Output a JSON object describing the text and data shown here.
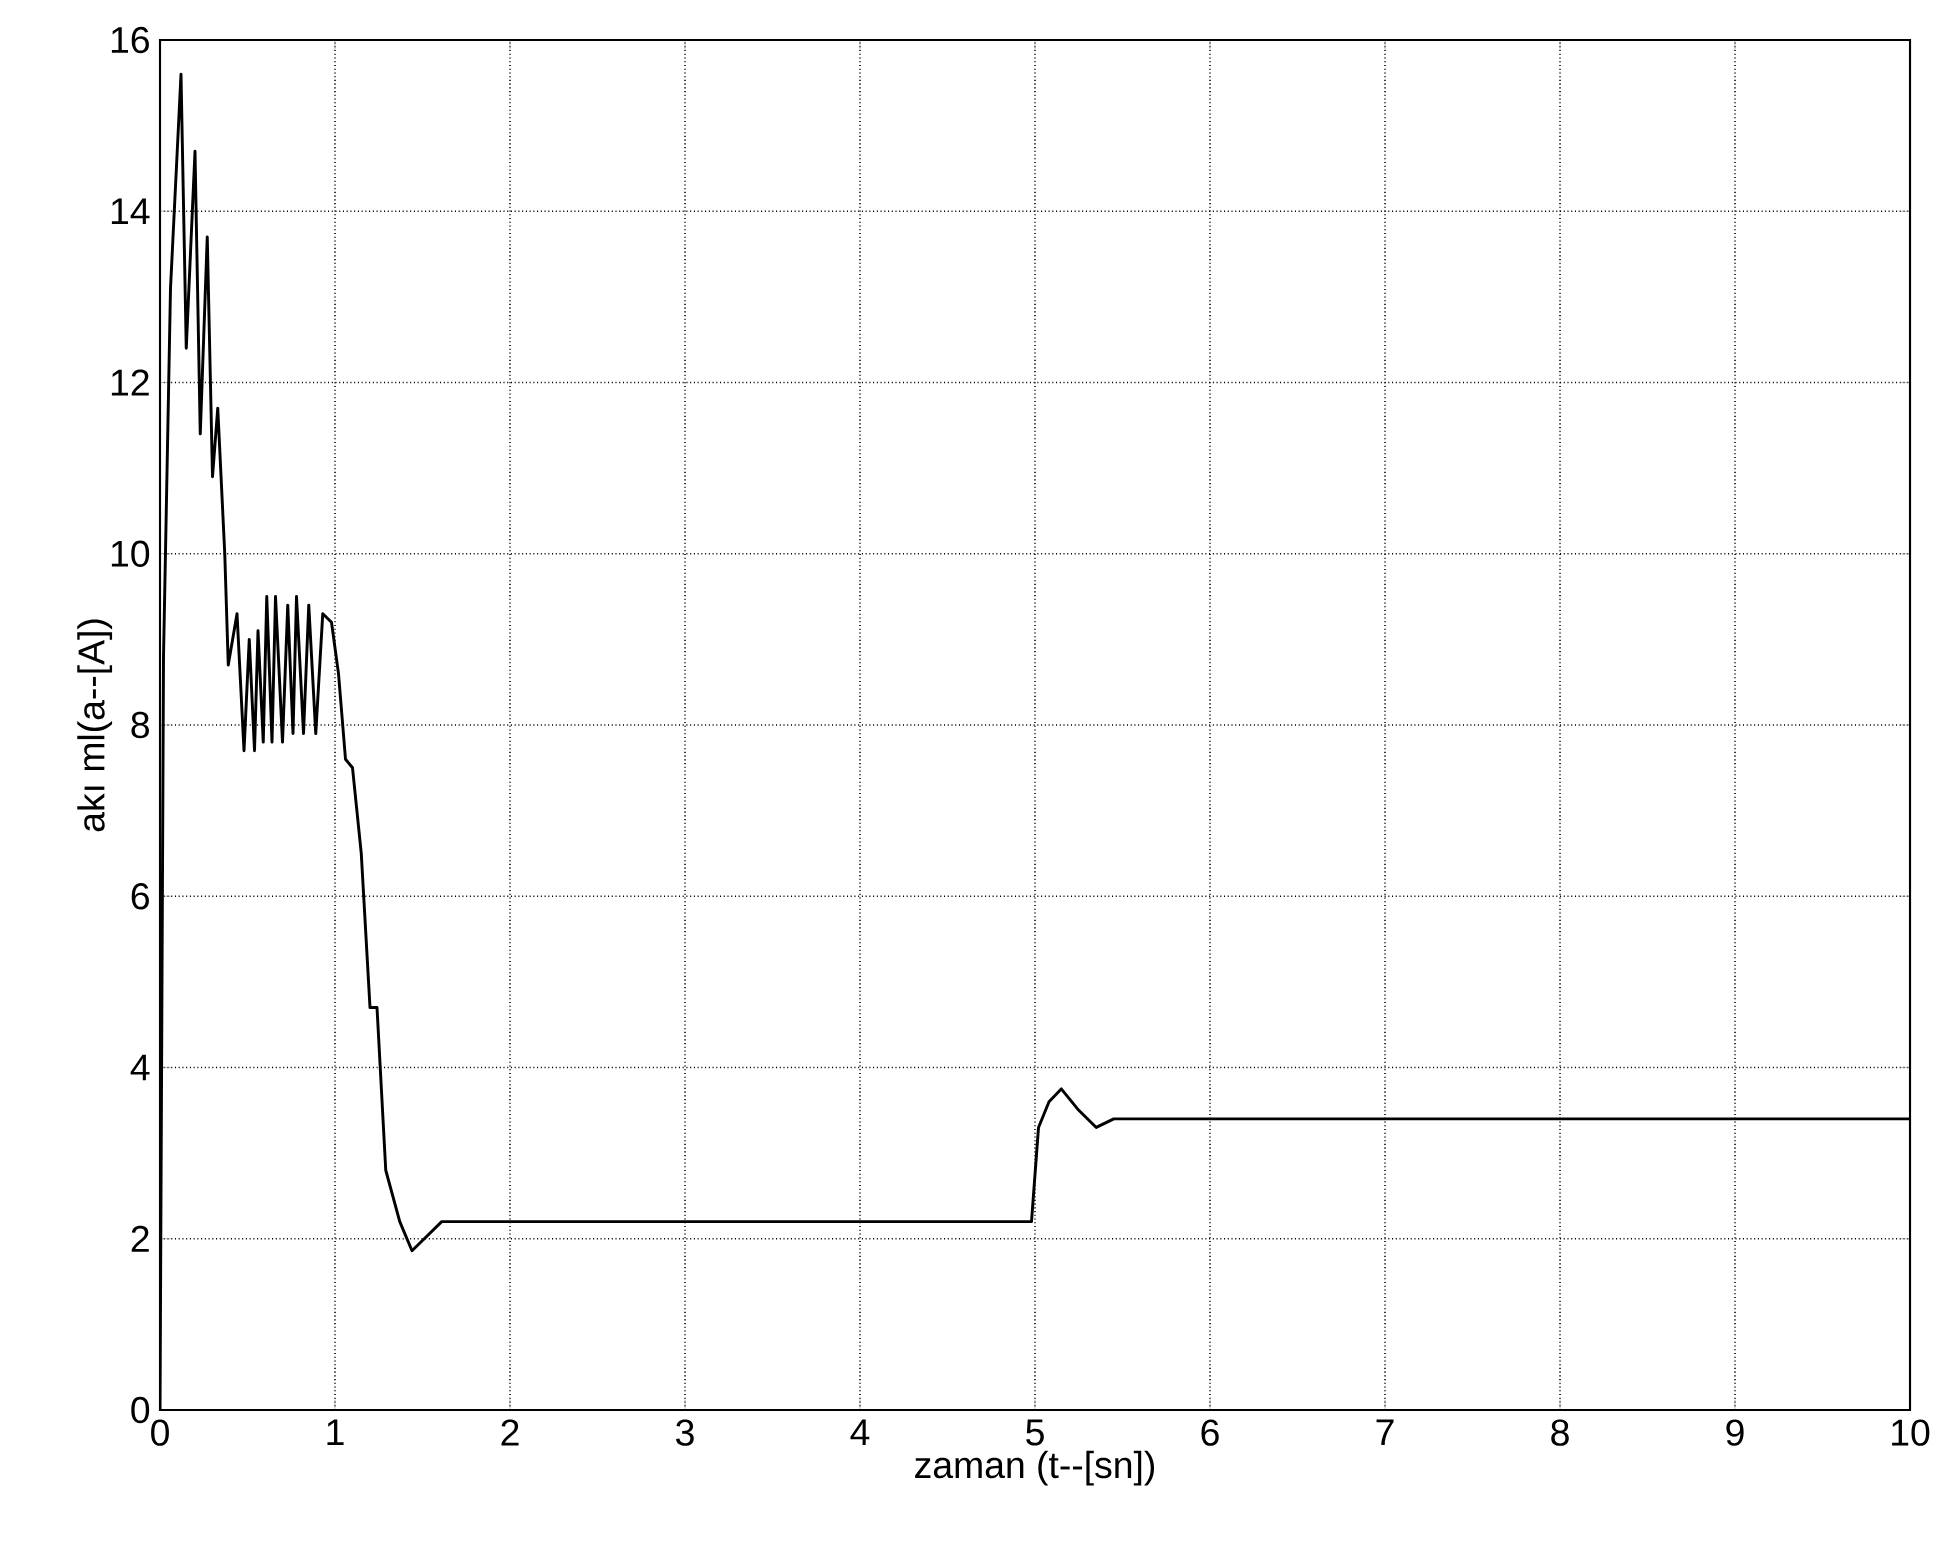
{
  "chart_data": {
    "type": "line",
    "xlabel": "zaman (t--[sn])",
    "ylabel": "akı  ml(a--[A])",
    "xlim": [
      0,
      10
    ],
    "ylim": [
      0,
      16
    ],
    "xticks": [
      0,
      1,
      2,
      3,
      4,
      5,
      6,
      7,
      8,
      9,
      10
    ],
    "yticks": [
      0,
      2,
      4,
      6,
      8,
      10,
      12,
      14,
      16
    ],
    "grid": true,
    "marker": "none",
    "line_style": "solid",
    "series": [
      {
        "color": "#000000",
        "x": [
          0,
          0.02,
          0.06,
          0.12,
          0.15,
          0.2,
          0.23,
          0.27,
          0.3,
          0.33,
          0.37,
          0.39,
          0.44,
          0.48,
          0.51,
          0.54,
          0.56,
          0.59,
          0.61,
          0.64,
          0.66,
          0.7,
          0.73,
          0.76,
          0.78,
          0.82,
          0.85,
          0.89,
          0.93,
          0.98,
          1.02,
          1.06,
          1.1,
          1.15,
          1.2,
          1.24,
          1.29,
          1.37,
          1.44,
          1.51,
          1.61,
          2.7,
          4.98,
          5.02,
          5.08,
          5.15,
          5.25,
          5.35,
          5.45,
          6,
          10
        ],
        "values": [
          0,
          8.8,
          13.1,
          15.6,
          12.4,
          14.7,
          11.4,
          13.7,
          10.9,
          11.7,
          10.0,
          8.7,
          9.3,
          7.7,
          9.0,
          7.7,
          9.1,
          7.8,
          9.5,
          7.8,
          9.5,
          7.8,
          9.4,
          7.9,
          9.5,
          7.9,
          9.4,
          7.9,
          9.3,
          9.2,
          8.6,
          7.6,
          7.5,
          6.5,
          4.7,
          4.7,
          2.8,
          2.2,
          1.86,
          2.0,
          2.2,
          2.2,
          2.2,
          3.3,
          3.6,
          3.75,
          3.5,
          3.3,
          3.4,
          3.4,
          3.4
        ]
      }
    ]
  }
}
